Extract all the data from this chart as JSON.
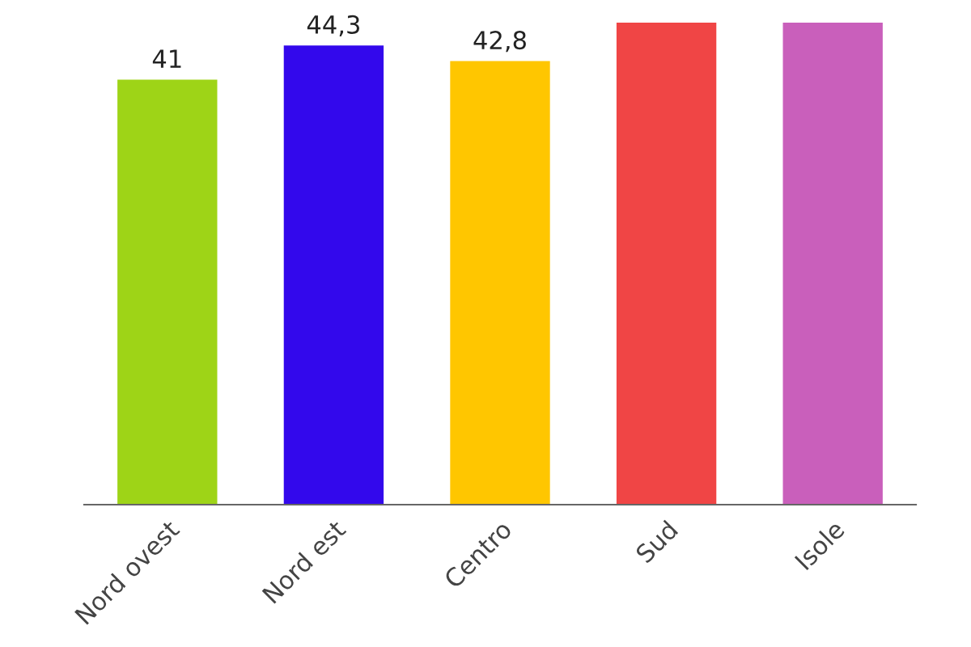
{
  "chart_data": {
    "type": "bar",
    "categories": [
      "Nord ovest",
      "Nord est",
      "Centro",
      "Sud",
      "Isole"
    ],
    "values": [
      41,
      44.3,
      42.8,
      46.5,
      46.5
    ],
    "colors": [
      "#9ed417",
      "#3308ec",
      "#ffc600",
      "#f04545",
      "#c95fbb"
    ],
    "value_labels": [
      "41",
      "44,3",
      "42,8",
      null,
      null
    ],
    "ylim": [
      0,
      46.5
    ],
    "tick_labels": "x",
    "grid": false,
    "legend": false
  }
}
